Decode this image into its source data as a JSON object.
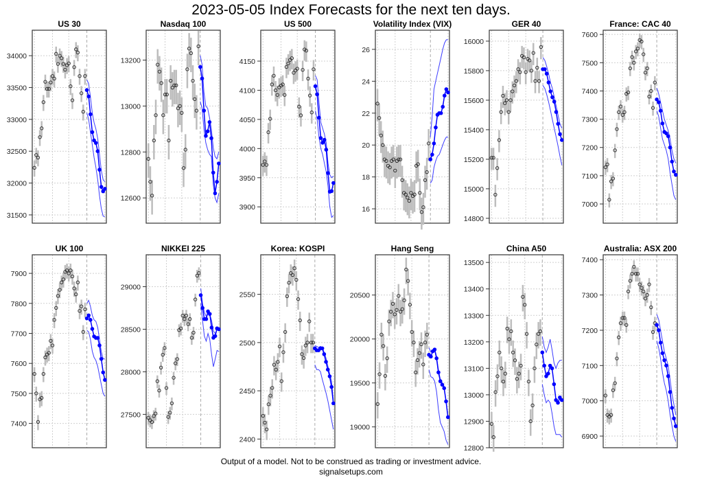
{
  "title": "2023-05-05 Index Forecasts for the next ten days.",
  "footer": {
    "disclaimer": "Output of a model. Not to be construed as trading or investment advice.",
    "site": "signalsetups.com"
  },
  "colors": {
    "history": "#bdbdbd",
    "forecast": "#0000ff",
    "band": "#3b3bff",
    "grid": "#cfcfcf"
  },
  "chart_data": [
    {
      "type": "line",
      "title": "US 30",
      "ylim": [
        31370,
        34400
      ],
      "ticks": [
        31500,
        32000,
        32500,
        33000,
        33500,
        34000
      ],
      "bar_range": 250,
      "history": [
        32240,
        32440,
        32400,
        32720,
        32860,
        33270,
        33590,
        33480,
        33480,
        33580,
        33680,
        33640,
        34030,
        33870,
        34000,
        33960,
        33870,
        33780,
        33850,
        33880,
        33520,
        33300,
        33820,
        34100,
        34050,
        33680,
        33410,
        33120,
        33680
      ],
      "forecast": [
        33460,
        33360,
        33080,
        32800,
        32670,
        32630,
        32500,
        32210,
        31940,
        31870,
        31910
      ],
      "upper": [
        33620,
        33560,
        33350,
        33100,
        32950,
        32850,
        32700,
        32450,
        32200,
        32050,
        32020
      ],
      "lower": [
        33100,
        33000,
        32800,
        32600,
        32400,
        32250,
        32050,
        31800,
        31600,
        31480,
        31470
      ]
    },
    {
      "type": "line",
      "title": "Nasdaq 100",
      "ylim": [
        12490,
        13330
      ],
      "ticks": [
        12600,
        12800,
        13000,
        13200
      ],
      "bar_range": 150,
      "history": [
        12770,
        12670,
        12610,
        12850,
        12960,
        13180,
        13150,
        13100,
        12960,
        13050,
        13050,
        12850,
        13110,
        13080,
        13090,
        13090,
        12990,
        13000,
        12970,
        12730,
        12810,
        13160,
        13250,
        13230,
        13110,
        13030,
        12980,
        13260
      ],
      "forecast": [
        13170,
        13120,
        12980,
        12870,
        12890,
        12930,
        12860,
        12710,
        12620,
        12670,
        12750
      ],
      "upper": [
        13220,
        13180,
        13060,
        13000,
        12990,
        12950,
        12900,
        12820,
        12780,
        12770,
        12800
      ],
      "lower": [
        13020,
        12990,
        12900,
        12840,
        12810,
        12790,
        12780,
        12660,
        12600,
        12580,
        12620
      ]
    },
    {
      "type": "line",
      "title": "US 500",
      "ylim": [
        3872,
        4203
      ],
      "ticks": [
        3900,
        3950,
        4000,
        4050,
        4100,
        4150
      ],
      "bar_range": 35,
      "history": [
        3972,
        3978,
        3972,
        4028,
        4051,
        4110,
        4125,
        4100,
        4092,
        4105,
        4108,
        4110,
        4092,
        4140,
        4146,
        4152,
        4155,
        4130,
        4134,
        4137,
        4072,
        4057,
        4135,
        4170,
        4168,
        4120,
        4091,
        4062,
        4136
      ],
      "forecast": [
        4107,
        4093,
        4053,
        4018,
        4010,
        4015,
        3998,
        3958,
        3926,
        3927,
        3941
      ],
      "upper": [
        4125,
        4118,
        4080,
        4045,
        4035,
        4025,
        4010,
        3975,
        3955,
        3950,
        3953
      ],
      "lower": [
        4065,
        4050,
        4020,
        4000,
        3990,
        3975,
        3960,
        3935,
        3900,
        3882,
        3885
      ]
    },
    {
      "type": "line",
      "title": "Volatility Index (VIX)",
      "ylim": [
        15.1,
        27.2
      ],
      "ticks": [
        16,
        18,
        20,
        22,
        24,
        26
      ],
      "bar_range": 2,
      "history": [
        22.6,
        21.7,
        20.6,
        20.0,
        19.1,
        19.0,
        18.7,
        18.6,
        19.0,
        19.1,
        18.4,
        19.0,
        19.1,
        19.1,
        17.8,
        17.0,
        16.9,
        16.7,
        16.5,
        17.0,
        16.8,
        16.9,
        18.7,
        18.8,
        17.0,
        15.8,
        16.1,
        17.8,
        18.3,
        20.1
      ],
      "forecast": [
        19.1,
        19.4,
        20.1,
        21.1,
        21.9,
        22.0,
        22.0,
        22.4,
        23.1,
        23.5,
        23.3
      ],
      "upper": [
        20.5,
        21.8,
        23.5,
        24.0,
        24.5,
        25.0,
        25.5,
        26.0,
        26.4,
        26.6,
        26.6
      ],
      "lower": [
        17.6,
        17.8,
        18.6,
        19.0,
        19.3,
        19.4,
        19.7,
        20.0,
        20.3,
        20.5,
        20.5
      ]
    },
    {
      "type": "line",
      "title": "GER 40",
      "ylim": [
        14767,
        16074
      ],
      "ticks": [
        14800,
        15000,
        15200,
        15400,
        15600,
        15800,
        16000
      ],
      "bar_range": 150,
      "history": [
        15210,
        15210,
        14960,
        15140,
        15330,
        15520,
        15630,
        15580,
        15600,
        15520,
        15600,
        15660,
        15700,
        15730,
        15810,
        15790,
        15900,
        15890,
        15790,
        15880,
        15870,
        15800,
        15920,
        15730,
        15820,
        15730,
        15960
      ],
      "forecast": [
        15810,
        15810,
        15780,
        15720,
        15660,
        15620,
        15590,
        15520,
        15440,
        15370,
        15330
      ],
      "upper": [
        15890,
        15870,
        15830,
        15780,
        15720,
        15680,
        15620,
        15560,
        15500,
        15440,
        15410
      ],
      "lower": [
        15700,
        15680,
        15640,
        15590,
        15530,
        15470,
        15410,
        15350,
        15290,
        15220,
        15160
      ]
    },
    {
      "type": "line",
      "title": "France: CAC 40",
      "ylim": [
        6932,
        7615
      ],
      "ticks": [
        7000,
        7100,
        7200,
        7300,
        7400,
        7500,
        7600
      ],
      "bar_range": 50,
      "history": [
        7130,
        7140,
        7015,
        7080,
        7090,
        7190,
        7265,
        7325,
        7345,
        7315,
        7325,
        7390,
        7395,
        7480,
        7520,
        7500,
        7540,
        7550,
        7580,
        7575,
        7530,
        7465,
        7480,
        7380,
        7400,
        7340,
        7430
      ],
      "forecast": [
        7370,
        7360,
        7330,
        7285,
        7255,
        7250,
        7240,
        7200,
        7150,
        7115,
        7103
      ],
      "upper": [
        7410,
        7390,
        7360,
        7330,
        7300,
        7280,
        7260,
        7230,
        7190,
        7160,
        7145
      ],
      "lower": [
        7330,
        7310,
        7270,
        7230,
        7210,
        7190,
        7160,
        7110,
        7070,
        7030,
        7015
      ]
    },
    {
      "type": "line",
      "title": "UK 100",
      "ylim": [
        7319,
        7962
      ],
      "ticks": [
        7400,
        7500,
        7600,
        7700,
        7800,
        7900
      ],
      "bar_range": 50,
      "history": [
        7565,
        7500,
        7405,
        7480,
        7485,
        7565,
        7620,
        7630,
        7635,
        7675,
        7660,
        7745,
        7785,
        7825,
        7845,
        7870,
        7880,
        7905,
        7910,
        7900,
        7910,
        7890,
        7850,
        7830,
        7870,
        7775,
        7790,
        7705,
        7780
      ],
      "forecast": [
        7750,
        7760,
        7745,
        7715,
        7690,
        7685,
        7685,
        7660,
        7615,
        7570,
        7545
      ],
      "upper": [
        7800,
        7810,
        7790,
        7760,
        7745,
        7740,
        7720,
        7680,
        7640,
        7615,
        7615
      ],
      "lower": [
        7710,
        7705,
        7680,
        7640,
        7620,
        7610,
        7590,
        7560,
        7530,
        7500,
        7490
      ]
    },
    {
      "type": "line",
      "title": "NIKKEI 225",
      "ylim": [
        27108,
        29375
      ],
      "ticks": [
        27500,
        28000,
        28500,
        29000
      ],
      "bar_range": 150,
      "history": [
        27460,
        27430,
        27410,
        27480,
        27510,
        27890,
        27780,
        28050,
        28200,
        28280,
        27810,
        27470,
        27520,
        27630,
        27930,
        28100,
        28150,
        28490,
        28510,
        28660,
        28620,
        28660,
        28560,
        28620,
        28400,
        28460,
        28850,
        29130,
        29160
      ],
      "forecast": [
        28900,
        28750,
        28620,
        28620,
        28710,
        28680,
        28520,
        28400,
        28420,
        28510,
        28500
      ],
      "upper": [
        28980,
        28800,
        28700,
        28650,
        28700,
        28680,
        28600,
        28480,
        28450,
        28500,
        28500
      ],
      "lower": [
        28800,
        28600,
        28420,
        28360,
        28450,
        28380,
        28200,
        28060,
        28150,
        28250,
        28240
      ]
    },
    {
      "type": "line",
      "title": "Korea: KOSPI",
      "ylim": [
        2391,
        2591
      ],
      "ticks": [
        2400,
        2450,
        2500,
        2550
      ],
      "bar_range": 20,
      "history": [
        2424,
        2417,
        2410,
        2436,
        2445,
        2453,
        2477,
        2472,
        2480,
        2496,
        2460,
        2490,
        2511,
        2548,
        2562,
        2572,
        2570,
        2577,
        2565,
        2545,
        2523,
        2488,
        2484,
        2497,
        2500,
        2522,
        2500,
        2500
      ],
      "forecast": [
        2494,
        2492,
        2492,
        2494,
        2494,
        2488,
        2480,
        2472,
        2465,
        2454,
        2437
      ],
      "upper": [
        2497,
        2496,
        2495,
        2496,
        2495,
        2490,
        2484,
        2476,
        2468,
        2460,
        2440
      ],
      "lower": [
        2477,
        2472,
        2472,
        2470,
        2462,
        2455,
        2448,
        2440,
        2430,
        2420,
        2410
      ]
    },
    {
      "type": "line",
      "title": "Hang Seng",
      "ylim": [
        18763,
        20958
      ],
      "ticks": [
        19000,
        19500,
        20000,
        20500
      ],
      "bar_range": 300,
      "history": [
        19260,
        19600,
        20050,
        19920,
        19580,
        19780,
        20200,
        20310,
        20400,
        20280,
        20330,
        20490,
        20310,
        20340,
        20440,
        20790,
        20660,
        20390,
        20080,
        19960,
        19620,
        19760,
        19840,
        19940,
        19710,
        19960,
        20050
      ],
      "forecast": [
        19820,
        19800,
        19860,
        19880,
        19780,
        19620,
        19520,
        19480,
        19440,
        19290,
        19110
      ],
      "upper": [
        19900,
        19850,
        19870,
        19890,
        19800,
        19650,
        19540,
        19500,
        19460,
        19300,
        19100
      ],
      "lower": [
        19650,
        19570,
        19560,
        19520,
        19400,
        19200,
        19050,
        19000,
        18950,
        18850,
        18800
      ]
    },
    {
      "type": "line",
      "title": "China A50",
      "ylim": [
        12800,
        13529
      ],
      "ticks": [
        12800,
        12900,
        13000,
        13100,
        13200,
        13300,
        13400,
        13500
      ],
      "bar_range": 100,
      "history": [
        12890,
        12840,
        13010,
        13070,
        13160,
        13100,
        13050,
        13080,
        13250,
        13210,
        13240,
        13160,
        13130,
        13060,
        13080,
        13110,
        13370,
        13340,
        13230,
        13050,
        12900,
        12960,
        13100,
        13190,
        13230,
        13240
      ],
      "forecast": [
        13160,
        13110,
        13070,
        13080,
        13110,
        13100,
        13040,
        12980,
        12970,
        12990,
        12980
      ],
      "upper": [
        13220,
        13180,
        13160,
        13180,
        13210,
        13170,
        13120,
        13100,
        13120,
        13130,
        13130
      ],
      "lower": [
        13040,
        13000,
        12970,
        12980,
        12970,
        12930,
        12880,
        12850,
        12850,
        12850,
        12840
      ]
    },
    {
      "type": "line",
      "title": "Australia: ASX 200",
      "ylim": [
        6867,
        7414
      ],
      "ticks": [
        6900,
        7000,
        7100,
        7200,
        7300,
        7400
      ],
      "bar_range": 40,
      "history": [
        7015,
        6960,
        6955,
        6960,
        7030,
        7050,
        7120,
        7180,
        7220,
        7235,
        7235,
        7215,
        7310,
        7340,
        7360,
        7380,
        7360,
        7360,
        7330,
        7320,
        7310,
        7290,
        7300,
        7330,
        7265,
        7195,
        7220
      ],
      "forecast": [
        7215,
        7200,
        7165,
        7135,
        7115,
        7100,
        7070,
        7025,
        6980,
        6950,
        6928
      ],
      "upper": [
        7245,
        7230,
        7200,
        7170,
        7140,
        7120,
        7100,
        7060,
        7020,
        6990,
        6960
      ],
      "lower": [
        7170,
        7150,
        7120,
        7080,
        7050,
        7030,
        7000,
        6960,
        6930,
        6900,
        6885
      ]
    }
  ]
}
